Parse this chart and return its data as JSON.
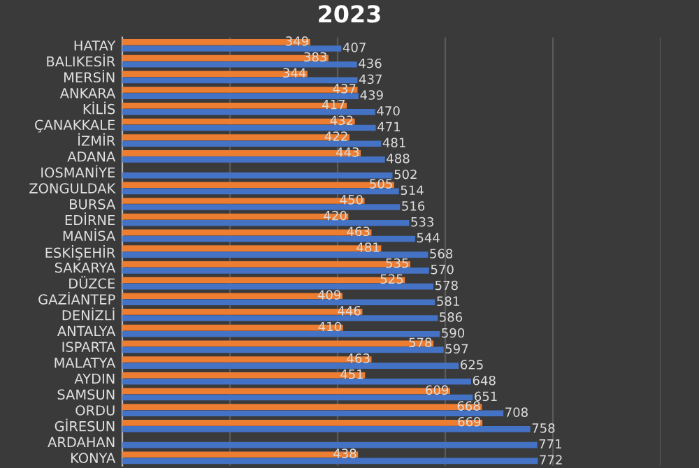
{
  "chart_data": {
    "type": "bar",
    "orientation": "horizontal",
    "title": "2023",
    "categories": [
      "HATAY",
      "BALIKESİR",
      "MERSİN",
      "ANKARA",
      "KİLİS",
      "ÇANAKKALE",
      "İZMİR",
      "ADANA",
      "IOSMANİYE",
      "ZONGULDAK",
      "BURSA",
      "EDİRNE",
      "MANİSA",
      "ESKİŞEHİR",
      "SAKARYA",
      "DÜZCE",
      "GAZİANTEP",
      "DENİZLİ",
      "ANTALYA",
      "ISPARTA",
      "MALATYA",
      "AYDIN",
      "SAMSUN",
      "ORDU",
      "GİRESUN",
      "ARDAHAN",
      "KONYA"
    ],
    "series": [
      {
        "color": "#ed7d31",
        "values": [
          349,
          383,
          344,
          437,
          417,
          432,
          422,
          443,
          null,
          505,
          450,
          420,
          463,
          481,
          535,
          525,
          409,
          446,
          410,
          578,
          463,
          451,
          609,
          668,
          669,
          null,
          438
        ]
      },
      {
        "color": "#4472c4",
        "values": [
          407,
          436,
          437,
          439,
          470,
          471,
          481,
          488,
          502,
          514,
          516,
          533,
          544,
          568,
          570,
          578,
          581,
          586,
          590,
          597,
          625,
          648,
          651,
          708,
          758,
          771,
          772
        ]
      }
    ],
    "xlim": [
      0,
      1000
    ],
    "xticks": [
      {
        "value": 0,
        "label": null
      },
      {
        "value": 200,
        "label": null
      },
      {
        "value": 400,
        "label": null
      },
      {
        "value": 600,
        "label": null
      },
      {
        "value": 800,
        "label": null
      },
      {
        "value": 1000,
        "label": null
      }
    ],
    "grid": "x",
    "tick_labels": "y",
    "data_labels": true
  }
}
